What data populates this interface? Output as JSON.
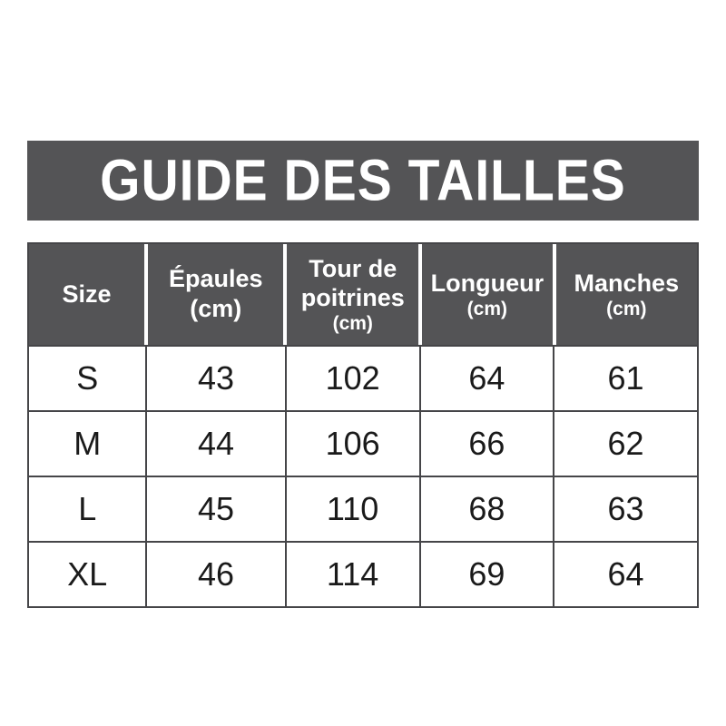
{
  "banner": {
    "title": "GUIDE DES TAILLES"
  },
  "header": {
    "columns": [
      {
        "label": "Size",
        "unit": ""
      },
      {
        "label": "Épaules",
        "unit": "(cm)"
      },
      {
        "label": "Tour de poitrines",
        "unit": "(cm)"
      },
      {
        "label": "Longueur",
        "unit": "(cm)"
      },
      {
        "label": "Manches",
        "unit": "(cm)"
      }
    ]
  },
  "colors": {
    "banner_bg": "#545456",
    "header_cell_bg": "#545456",
    "header_text": "#ffffff",
    "grid_border": "#454548",
    "body_bg": "#ffffff",
    "body_text": "#1a1a1a"
  },
  "chart_data": {
    "type": "table",
    "title": "GUIDE DES TAILLES",
    "columns": [
      "Size",
      "Épaules (cm)",
      "Tour de poitrines (cm)",
      "Longueur (cm)",
      "Manches (cm)"
    ],
    "rows": [
      [
        "S",
        "43",
        "102",
        "64",
        "61"
      ],
      [
        "M",
        "44",
        "106",
        "66",
        "62"
      ],
      [
        "L",
        "45",
        "110",
        "68",
        "63"
      ],
      [
        "XL",
        "46",
        "114",
        "69",
        "64"
      ]
    ]
  }
}
